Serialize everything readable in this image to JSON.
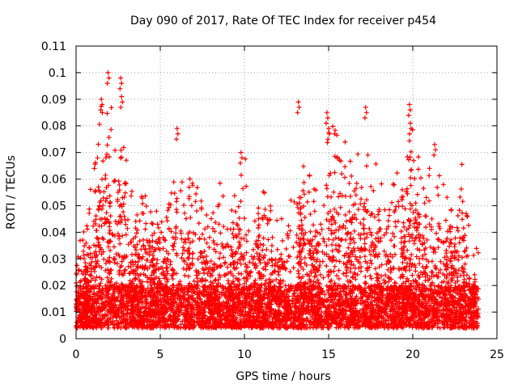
{
  "chart_data": {
    "type": "scatter",
    "title": "Day 090 of 2017, Rate Of TEC Index for receiver p454",
    "xlabel": "GPS time / hours",
    "ylabel": "ROTI / TECUs",
    "xlim": [
      0,
      25
    ],
    "ylim": [
      0,
      0.11
    ],
    "xticks": [
      0,
      5,
      10,
      15,
      20,
      25
    ],
    "xtick_labels": [
      "0",
      "5",
      "10",
      "15",
      "20",
      "25"
    ],
    "yticks": [
      0,
      0.01,
      0.02,
      0.03,
      0.04,
      0.05,
      0.06,
      0.07,
      0.08,
      0.09,
      0.1,
      0.11
    ],
    "ytick_labels": [
      "0",
      "0.01",
      "0.02",
      "0.03",
      "0.04",
      "0.05",
      "0.06",
      "0.07",
      "0.08",
      "0.09",
      "0.1",
      "0.11"
    ],
    "grid": true,
    "marker": "+",
    "marker_color": "#ff0000",
    "series": [
      {
        "name": "ROTI",
        "x_range": [
          0,
          23.9
        ],
        "baseline_band": [
          0.004,
          0.02
        ],
        "envelope": {
          "x": [
            0,
            0.5,
            1,
            1.5,
            1.7,
            2,
            2.5,
            3,
            3.5,
            4,
            4.5,
            5,
            5.5,
            6,
            6.5,
            7,
            7.5,
            8,
            8.5,
            9,
            9.5,
            10,
            10.5,
            11,
            11.5,
            12,
            12.5,
            13,
            13.5,
            14,
            14.5,
            15,
            15.5,
            16,
            16.5,
            17,
            17.5,
            18,
            18.5,
            19,
            19.5,
            20,
            20.5,
            21,
            21.5,
            22,
            22.5,
            23,
            23.5,
            23.9
          ],
          "y": [
            0.045,
            0.04,
            0.065,
            0.09,
            0.1,
            0.085,
            0.098,
            0.068,
            0.05,
            0.067,
            0.055,
            0.045,
            0.05,
            0.068,
            0.06,
            0.065,
            0.05,
            0.045,
            0.06,
            0.055,
            0.06,
            0.07,
            0.05,
            0.065,
            0.055,
            0.045,
            0.06,
            0.055,
            0.068,
            0.065,
            0.06,
            0.085,
            0.078,
            0.075,
            0.065,
            0.087,
            0.07,
            0.065,
            0.06,
            0.065,
            0.06,
            0.088,
            0.06,
            0.073,
            0.068,
            0.06,
            0.055,
            0.068,
            0.03,
            0.038
          ]
        },
        "spikes": [
          {
            "x": 1.5,
            "y": 0.09
          },
          {
            "x": 1.9,
            "y": 0.1
          },
          {
            "x": 2.65,
            "y": 0.098
          },
          {
            "x": 2.7,
            "y": 0.091
          },
          {
            "x": 6.0,
            "y": 0.079
          },
          {
            "x": 9.8,
            "y": 0.07
          },
          {
            "x": 13.2,
            "y": 0.089
          },
          {
            "x": 14.9,
            "y": 0.085
          },
          {
            "x": 15.0,
            "y": 0.079
          },
          {
            "x": 17.2,
            "y": 0.087
          },
          {
            "x": 19.8,
            "y": 0.088
          },
          {
            "x": 19.85,
            "y": 0.081
          },
          {
            "x": 21.3,
            "y": 0.073
          }
        ]
      }
    ]
  }
}
